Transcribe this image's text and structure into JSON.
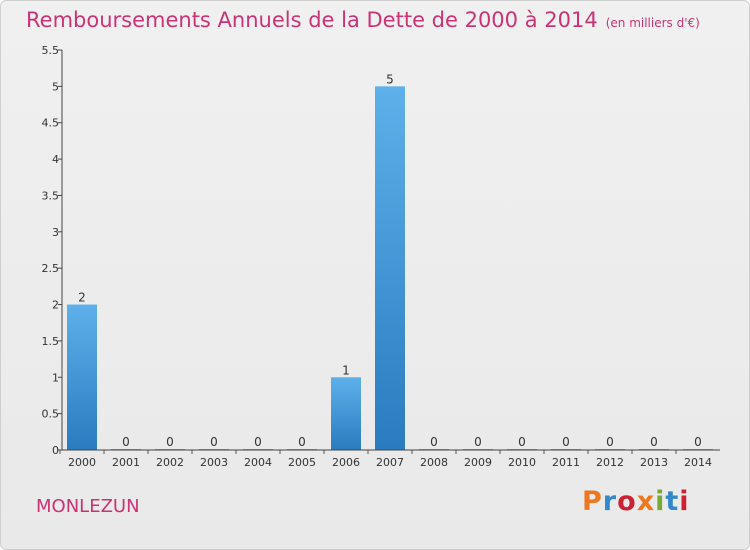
{
  "title": "Remboursements Annuels de la Dette de 2000 à 2014",
  "unit": "(en milliers d'€)",
  "commune": "MONLEZUN",
  "brand": {
    "text": "Proxiti",
    "colors": [
      "#ee7722",
      "#3388cc",
      "#cc2233",
      "#ee7722",
      "#77aa33",
      "#3388cc",
      "#cc2233"
    ]
  },
  "colors": {
    "bar_top": "#5eb0ea",
    "bar_bottom": "#2a7bc0",
    "title": "#cc3377"
  },
  "chart_data": {
    "type": "bar",
    "categories": [
      "2000",
      "2001",
      "2002",
      "2003",
      "2004",
      "2005",
      "2006",
      "2007",
      "2008",
      "2009",
      "2010",
      "2011",
      "2012",
      "2013",
      "2014"
    ],
    "values": [
      2,
      0,
      0,
      0,
      0,
      0,
      1,
      5,
      0,
      0,
      0,
      0,
      0,
      0,
      0
    ],
    "data_labels": [
      "2",
      "0",
      "0",
      "0",
      "0",
      "0",
      "1",
      "5",
      "0",
      "0",
      "0",
      "0",
      "0",
      "0",
      "0"
    ],
    "y_ticks": [
      0,
      0.5,
      1,
      1.5,
      2,
      2.5,
      3,
      3.5,
      4,
      4.5,
      5,
      5.5
    ],
    "y_tick_labels": [
      "0",
      "0.5",
      "1",
      "1.5",
      "2",
      "2.5",
      "3",
      "3.5",
      "4",
      "4.5",
      "5",
      "5.5"
    ],
    "ylim": [
      0,
      5.5
    ],
    "grid": false,
    "legend": "none"
  }
}
